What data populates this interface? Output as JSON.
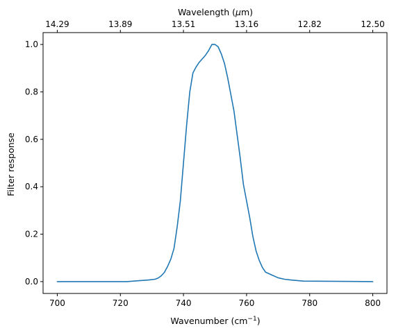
{
  "chart_data": {
    "type": "line",
    "xlabel": "Wavenumber (cm",
    "xlabel_sup": "−1",
    "xlabel_end": ")",
    "ylabel": "Filter response",
    "x2label": "Wavelength (",
    "x2label_mu": "μ",
    "x2label_end": "m)",
    "xlim": [
      695.5,
      804.5
    ],
    "ylim": [
      -0.05,
      1.05
    ],
    "x_ticks": [
      700,
      720,
      740,
      760,
      780,
      800
    ],
    "x_tick_labels": [
      "700",
      "720",
      "740",
      "760",
      "780",
      "800"
    ],
    "y_ticks": [
      0.0,
      0.2,
      0.4,
      0.6,
      0.8,
      1.0
    ],
    "y_tick_labels": [
      "0.0",
      "0.2",
      "0.4",
      "0.6",
      "0.8",
      "1.0"
    ],
    "x2_ticks": [
      700,
      720,
      740,
      760,
      780,
      800
    ],
    "x2_tick_labels": [
      "14.29",
      "13.89",
      "13.51",
      "13.16",
      "12.82",
      "12.50"
    ],
    "grid": false,
    "legend": "none",
    "line_color": "#1f77b4",
    "series": [
      {
        "x": [
          700,
          710,
          722,
          726,
          729,
          731,
          732,
          733,
          734,
          735,
          736,
          737,
          738,
          739,
          740,
          741,
          742,
          743,
          744,
          745,
          746,
          747,
          748,
          749,
          750,
          751,
          752,
          753,
          754,
          755,
          756,
          757,
          758,
          759,
          760,
          761,
          762,
          763,
          764,
          765,
          766,
          768,
          770,
          772,
          774,
          778,
          790,
          800
        ],
        "y": [
          0.0,
          0.0,
          0.0,
          0.004,
          0.007,
          0.01,
          0.015,
          0.025,
          0.04,
          0.065,
          0.095,
          0.14,
          0.23,
          0.34,
          0.5,
          0.66,
          0.8,
          0.88,
          0.905,
          0.925,
          0.94,
          0.955,
          0.975,
          1.0,
          1.0,
          0.99,
          0.96,
          0.92,
          0.86,
          0.79,
          0.72,
          0.62,
          0.52,
          0.41,
          0.34,
          0.27,
          0.19,
          0.13,
          0.09,
          0.06,
          0.04,
          0.028,
          0.016,
          0.01,
          0.007,
          0.002,
          0.001,
          0.0
        ]
      }
    ]
  }
}
